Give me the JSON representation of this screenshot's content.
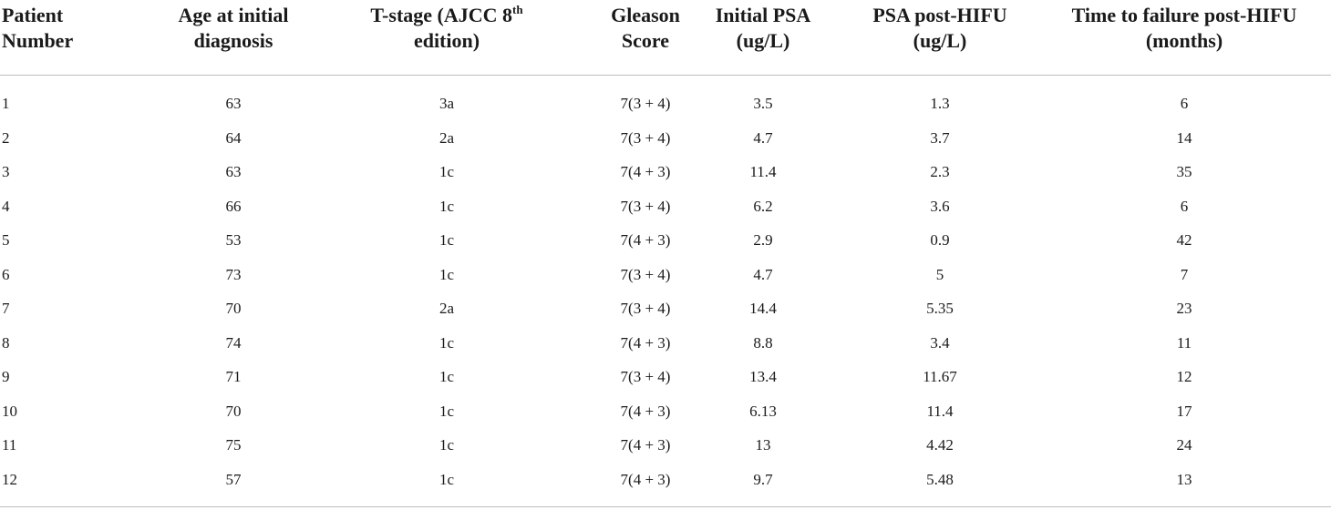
{
  "table": {
    "headers": [
      {
        "line1": "Patient",
        "line2": "Number"
      },
      {
        "line1": "Age at initial",
        "line2": "diagnosis"
      },
      {
        "line1": "T-stage (AJCC 8",
        "sup": "th",
        "line2": "edition)"
      },
      {
        "line1": "Gleason",
        "line2": "Score"
      },
      {
        "line1": "Initial PSA",
        "line2": "(ug/L)"
      },
      {
        "line1": "PSA post-HIFU",
        "line2": "(ug/L)"
      },
      {
        "line1": "Time to failure post-HIFU",
        "line2": "(months)"
      }
    ],
    "rows": [
      [
        "1",
        "63",
        "3a",
        "7(3 + 4)",
        "3.5",
        "1.3",
        "6"
      ],
      [
        "2",
        "64",
        "2a",
        "7(3 + 4)",
        "4.7",
        "3.7",
        "14"
      ],
      [
        "3",
        "63",
        "1c",
        "7(4 + 3)",
        "11.4",
        "2.3",
        "35"
      ],
      [
        "4",
        "66",
        "1c",
        "7(3 + 4)",
        "6.2",
        "3.6",
        "6"
      ],
      [
        "5",
        "53",
        "1c",
        "7(4 + 3)",
        "2.9",
        "0.9",
        "42"
      ],
      [
        "6",
        "73",
        "1c",
        "7(3 + 4)",
        "4.7",
        "5",
        "7"
      ],
      [
        "7",
        "70",
        "2a",
        "7(3 + 4)",
        "14.4",
        "5.35",
        "23"
      ],
      [
        "8",
        "74",
        "1c",
        "7(4 + 3)",
        "8.8",
        "3.4",
        "11"
      ],
      [
        "9",
        "71",
        "1c",
        "7(3 + 4)",
        "13.4",
        "11.67",
        "12"
      ],
      [
        "10",
        "70",
        "1c",
        "7(4 + 3)",
        "6.13",
        "11.4",
        "17"
      ],
      [
        "11",
        "75",
        "1c",
        "7(4 + 3)",
        "13",
        "4.42",
        "24"
      ],
      [
        "12",
        "57",
        "1c",
        "7(4 + 3)",
        "9.7",
        "5.48",
        "13"
      ]
    ]
  }
}
